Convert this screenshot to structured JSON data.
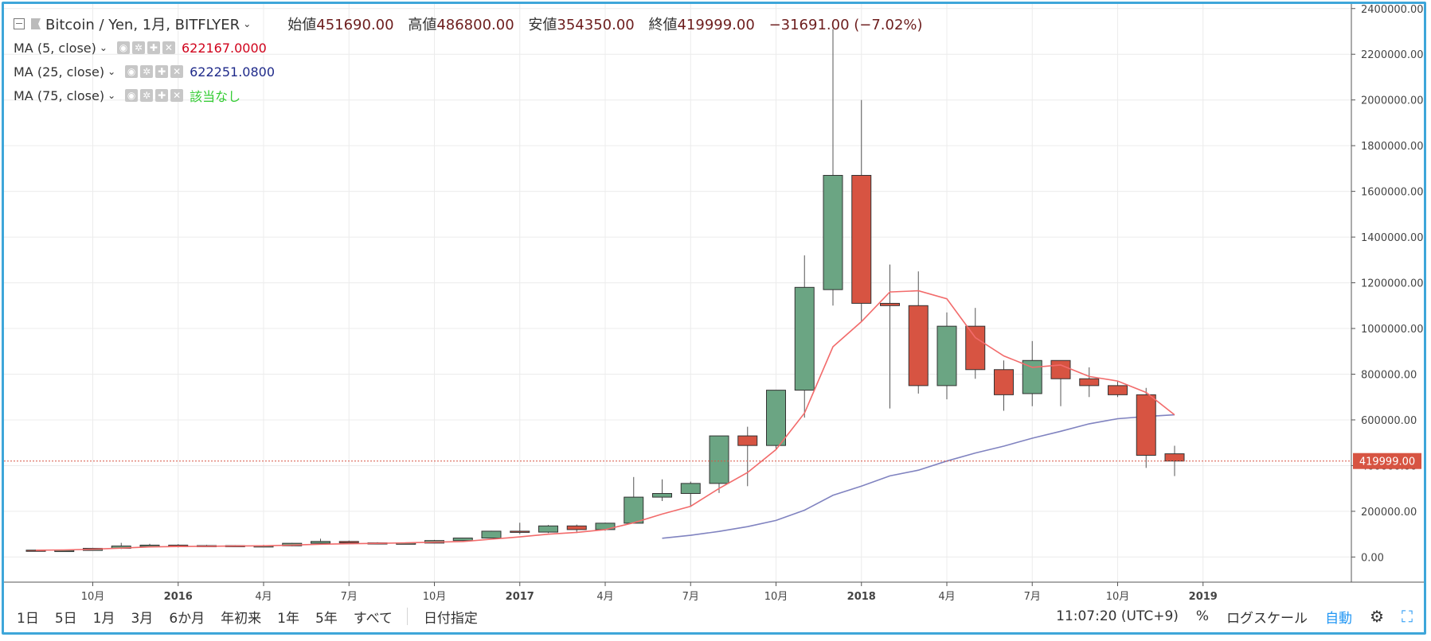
{
  "header": {
    "symbol": "Bitcoin / Yen, 1月, BITFLYER",
    "open_label": "始値",
    "open": "451690.00",
    "high_label": "高値",
    "high": "486800.00",
    "low_label": "安値",
    "low": "354350.00",
    "close_label": "終値",
    "close": "419999.00",
    "change": "−31691.00 (−7.02%)"
  },
  "indicators": [
    {
      "label": "MA (5, close)",
      "value": "622167.0000",
      "color": "#d0021b"
    },
    {
      "label": "MA (25, close)",
      "value": "622251.0800",
      "color": "#1f2a8a"
    },
    {
      "label": "MA (75, close)",
      "value": "該当なし",
      "color": "#33cc33"
    }
  ],
  "toolbar": {
    "ranges": [
      "1日",
      "5日",
      "1月",
      "3月",
      "6か月",
      "年初来",
      "1年",
      "5年",
      "すべて"
    ],
    "date_pick": "日付指定",
    "clock": "11:07:20 (UTC+9)",
    "percent": "%",
    "log_scale": "ログスケール",
    "auto": "自動"
  },
  "colors": {
    "up": "#6ba583",
    "down": "#d75442",
    "ma5": "#f26b6b",
    "ma25": "#8083c0",
    "ma5_tail": "#5fb8a5",
    "price_line": "#d75442",
    "frame": "#3ea6d9"
  },
  "chart_data": {
    "type": "candlestick",
    "x_ticks": [
      "10月",
      "2016",
      "4月",
      "7月",
      "10月",
      "2017",
      "4月",
      "7月",
      "10月",
      "2018",
      "4月",
      "7月",
      "10月",
      "2019"
    ],
    "y_ticks": [
      "0.00",
      "200000.00",
      "400000.00",
      "600000.00",
      "800000.00",
      "1000000.00",
      "1200000.00",
      "1400000.00",
      "1600000.00",
      "1800000.00",
      "2000000.00",
      "2200000.00",
      "2400000.00"
    ],
    "ylim": [
      -110000,
      2420000
    ],
    "last_price": 419999,
    "last_price_label": "419999.00",
    "candles": [
      {
        "date": "2015-08",
        "o": 30000,
        "h": 32000,
        "l": 28000,
        "c": 29000
      },
      {
        "date": "2015-09",
        "o": 28000,
        "h": 32000,
        "l": 27000,
        "c": 29000
      },
      {
        "date": "2015-10",
        "o": 29000,
        "h": 40000,
        "l": 28000,
        "c": 38000
      },
      {
        "date": "2015-11",
        "o": 38000,
        "h": 62000,
        "l": 35000,
        "c": 48000
      },
      {
        "date": "2015-12",
        "o": 46000,
        "h": 58000,
        "l": 42000,
        "c": 52000
      },
      {
        "date": "2016-01",
        "o": 52000,
        "h": 56000,
        "l": 42000,
        "c": 45000
      },
      {
        "date": "2016-02",
        "o": 45000,
        "h": 53000,
        "l": 43000,
        "c": 50000
      },
      {
        "date": "2016-03",
        "o": 50000,
        "h": 52000,
        "l": 46000,
        "c": 47000
      },
      {
        "date": "2016-04",
        "o": 47000,
        "h": 53000,
        "l": 46000,
        "c": 49000
      },
      {
        "date": "2016-05",
        "o": 49000,
        "h": 62000,
        "l": 47000,
        "c": 60000
      },
      {
        "date": "2016-06",
        "o": 60000,
        "h": 80000,
        "l": 55000,
        "c": 68000
      },
      {
        "date": "2016-07",
        "o": 68000,
        "h": 72000,
        "l": 58000,
        "c": 62000
      },
      {
        "date": "2016-08",
        "o": 62000,
        "h": 65000,
        "l": 56000,
        "c": 60000
      },
      {
        "date": "2016-09",
        "o": 60000,
        "h": 63000,
        "l": 58000,
        "c": 61000
      },
      {
        "date": "2016-10",
        "o": 61000,
        "h": 75000,
        "l": 60000,
        "c": 72000
      },
      {
        "date": "2016-11",
        "o": 72000,
        "h": 84000,
        "l": 70000,
        "c": 83000
      },
      {
        "date": "2016-12",
        "o": 83000,
        "h": 115000,
        "l": 82000,
        "c": 113000
      },
      {
        "date": "2017-01",
        "o": 113000,
        "h": 150000,
        "l": 100000,
        "c": 109000
      },
      {
        "date": "2017-02",
        "o": 109000,
        "h": 140000,
        "l": 105000,
        "c": 136000
      },
      {
        "date": "2017-03",
        "o": 136000,
        "h": 142000,
        "l": 105000,
        "c": 120000
      },
      {
        "date": "2017-04",
        "o": 120000,
        "h": 150000,
        "l": 115000,
        "c": 148000
      },
      {
        "date": "2017-05",
        "o": 148000,
        "h": 350000,
        "l": 146000,
        "c": 262000
      },
      {
        "date": "2017-06",
        "o": 262000,
        "h": 340000,
        "l": 245000,
        "c": 278000
      },
      {
        "date": "2017-07",
        "o": 278000,
        "h": 330000,
        "l": 220000,
        "c": 322000
      },
      {
        "date": "2017-08",
        "o": 322000,
        "h": 530000,
        "l": 280000,
        "c": 530000
      },
      {
        "date": "2017-09",
        "o": 530000,
        "h": 570000,
        "l": 310000,
        "c": 488000
      },
      {
        "date": "2017-10",
        "o": 488000,
        "h": 730000,
        "l": 470000,
        "c": 730000
      },
      {
        "date": "2017-11",
        "o": 730000,
        "h": 1320000,
        "l": 610000,
        "c": 1180000
      },
      {
        "date": "2017-12",
        "o": 1170000,
        "h": 2310000,
        "l": 1100000,
        "c": 1670000
      },
      {
        "date": "2018-01",
        "o": 1670000,
        "h": 2000000,
        "l": 1030000,
        "c": 1110000
      },
      {
        "date": "2018-02",
        "o": 1110000,
        "h": 1280000,
        "l": 650000,
        "c": 1100000
      },
      {
        "date": "2018-03",
        "o": 1100000,
        "h": 1250000,
        "l": 715000,
        "c": 750000
      },
      {
        "date": "2018-04",
        "o": 750000,
        "h": 1070000,
        "l": 690000,
        "c": 1010000
      },
      {
        "date": "2018-05",
        "o": 1010000,
        "h": 1090000,
        "l": 780000,
        "c": 820000
      },
      {
        "date": "2018-06",
        "o": 820000,
        "h": 860000,
        "l": 640000,
        "c": 710000
      },
      {
        "date": "2018-07",
        "o": 715000,
        "h": 945000,
        "l": 660000,
        "c": 860000
      },
      {
        "date": "2018-08",
        "o": 860000,
        "h": 860000,
        "l": 660000,
        "c": 780000
      },
      {
        "date": "2018-09",
        "o": 780000,
        "h": 830000,
        "l": 700000,
        "c": 750000
      },
      {
        "date": "2018-10",
        "o": 750000,
        "h": 770000,
        "l": 700000,
        "c": 710000
      },
      {
        "date": "2018-11",
        "o": 710000,
        "h": 740000,
        "l": 390000,
        "c": 445000
      },
      {
        "date": "2018-12",
        "o": 451690,
        "h": 486800,
        "l": 354350,
        "c": 419999
      }
    ],
    "ma5": [
      30000,
      31000,
      34000,
      39000,
      44000,
      46000,
      47000,
      48000,
      49000,
      52000,
      56000,
      58000,
      60000,
      62000,
      65000,
      68000,
      78000,
      88000,
      100000,
      108000,
      120000,
      150000,
      188000,
      222000,
      300000,
      370000,
      470000,
      630000,
      920000,
      1030000,
      1160000,
      1165000,
      1130000,
      960000,
      880000,
      830000,
      840000,
      790000,
      770000,
      720000,
      622167
    ],
    "ma25": [
      null,
      null,
      null,
      null,
      null,
      null,
      null,
      null,
      null,
      null,
      null,
      null,
      null,
      null,
      null,
      null,
      null,
      null,
      null,
      null,
      null,
      null,
      82000,
      95000,
      112000,
      133000,
      160000,
      205000,
      270000,
      310000,
      355000,
      380000,
      420000,
      455000,
      485000,
      520000,
      550000,
      583000,
      605000,
      615000,
      622251
    ]
  }
}
